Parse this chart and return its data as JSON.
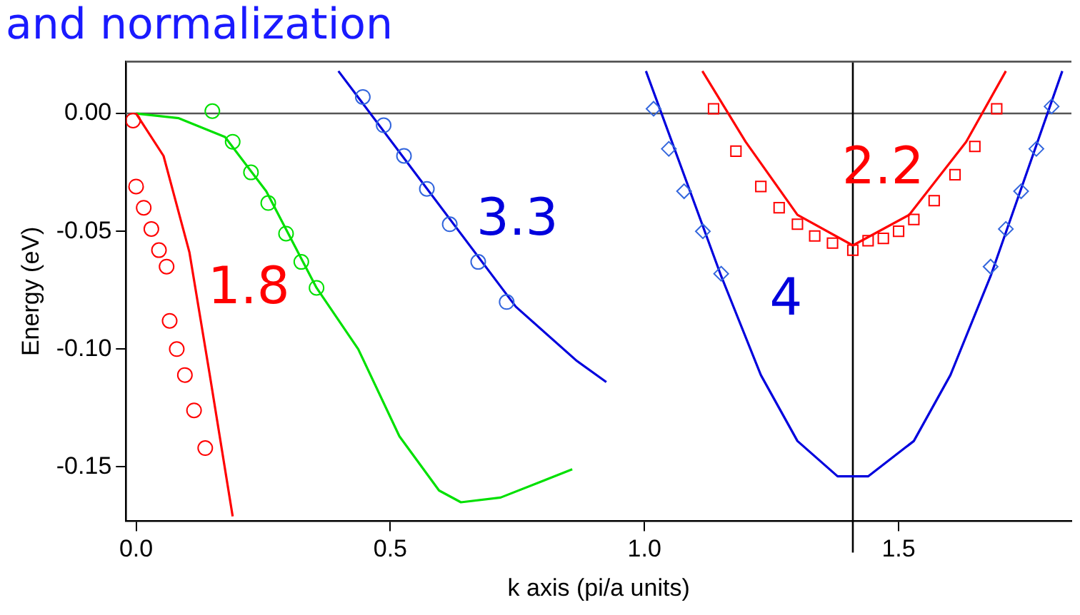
{
  "chart_data": {
    "type": "scatter",
    "title": "and normalization",
    "xlabel": "k axis (pi/a units)",
    "ylabel": "Energy (eV)",
    "xlim": [
      -0.02,
      1.84
    ],
    "ylim": [
      -0.173,
      0.022
    ],
    "xticks": [
      {
        "value": 0,
        "label": "0.0"
      },
      {
        "value": 0.5,
        "label": "0.5"
      },
      {
        "value": 1,
        "label": "1.0"
      },
      {
        "value": 1.5,
        "label": "1.5"
      }
    ],
    "yticks": [
      {
        "value": 0,
        "label": "0.00"
      },
      {
        "value": -0.05,
        "label": "-0.05"
      },
      {
        "value": -0.1,
        "label": "-0.10"
      },
      {
        "value": -0.15,
        "label": "-0.15"
      }
    ],
    "grid": false,
    "legend": false,
    "line_style": "solid",
    "series": [
      {
        "marker": "circle",
        "color": "#ff0000",
        "x": [
          -0.006,
          0,
          0.015,
          0.03,
          0.045,
          0.06,
          0.066,
          0.08,
          0.096,
          0.114,
          0.136
        ],
        "values": [
          -0.003,
          -0.031,
          -0.04,
          -0.049,
          -0.058,
          -0.065,
          -0.088,
          -0.1,
          -0.111,
          -0.126,
          -0.142
        ]
      },
      {
        "type": "line",
        "name": "1.8",
        "marker": "none",
        "color": "#ff0000",
        "x": [
          0,
          0.054,
          0.105,
          0.145,
          0.19
        ],
        "values": [
          0,
          -0.018,
          -0.059,
          -0.111,
          -0.171
        ]
      },
      {
        "marker": "circle",
        "color": "#00e000",
        "x": [
          0.15,
          0.19,
          0.226,
          0.26,
          0.295,
          0.325,
          0.355
        ],
        "values": [
          0.001,
          -0.012,
          -0.025,
          -0.038,
          -0.051,
          -0.063,
          -0.074
        ]
      },
      {
        "type": "line",
        "marker": "none",
        "color": "#00e000",
        "x": [
          0,
          0.084,
          0.175,
          0.256,
          0.355,
          0.437,
          0.518,
          0.596,
          0.639,
          0.717,
          0.858
        ],
        "values": [
          0,
          -0.002,
          -0.01,
          -0.033,
          -0.074,
          -0.1,
          -0.137,
          -0.16,
          -0.165,
          -0.163,
          -0.151
        ]
      },
      {
        "marker": "circle",
        "color": "#3366dd",
        "x": [
          0.446,
          0.487,
          0.527,
          0.572,
          0.617,
          0.673,
          0.729
        ],
        "values": [
          0.007,
          -0.005,
          -0.018,
          -0.032,
          -0.047,
          -0.063,
          -0.08
        ]
      },
      {
        "type": "line",
        "name": "3.3",
        "marker": "none",
        "color": "#0000dd",
        "x": [
          0.398,
          0.747,
          0.867,
          0.925
        ],
        "values": [
          0.018,
          -0.082,
          -0.105,
          -0.114
        ]
      },
      {
        "marker": "diamond",
        "color": "#3366dd",
        "x": [
          1.018,
          1.048,
          1.078,
          1.115,
          1.151,
          1.681,
          1.711,
          1.741,
          1.771,
          1.801
        ],
        "values": [
          0.002,
          -0.015,
          -0.033,
          -0.05,
          -0.068,
          -0.065,
          -0.049,
          -0.033,
          -0.015,
          0.003
        ]
      },
      {
        "type": "line",
        "name": "4",
        "marker": "none",
        "color": "#0000dd",
        "x": [
          1.003,
          1.151,
          1.229,
          1.301,
          1.38,
          1.44,
          1.53,
          1.602,
          1.681,
          1.822
        ],
        "values": [
          0.018,
          -0.069,
          -0.111,
          -0.139,
          -0.154,
          -0.154,
          -0.139,
          -0.111,
          -0.069,
          0.018
        ]
      },
      {
        "marker": "square",
        "color": "#ff0000",
        "x": [
          1.136,
          1.18,
          1.229,
          1.265,
          1.301,
          1.335,
          1.37,
          1.41,
          1.44,
          1.47,
          1.5,
          1.53,
          1.57,
          1.611,
          1.65,
          1.693
        ],
        "values": [
          0.002,
          -0.016,
          -0.031,
          -0.04,
          -0.047,
          -0.052,
          -0.055,
          -0.058,
          -0.054,
          -0.053,
          -0.05,
          -0.045,
          -0.037,
          -0.026,
          -0.014,
          0.002
        ]
      },
      {
        "type": "line",
        "name": "2.2",
        "marker": "none",
        "color": "#ff0000",
        "x": [
          1.114,
          1.199,
          1.301,
          1.41,
          1.521,
          1.633,
          1.711
        ],
        "values": [
          0.018,
          -0.012,
          -0.043,
          -0.056,
          -0.043,
          -0.012,
          0.018
        ]
      }
    ],
    "ref_lines": [
      {
        "axis": "y",
        "value": 0,
        "color": "#555555"
      },
      {
        "axis": "x",
        "value": 1.41,
        "color": "#000000"
      }
    ]
  }
}
